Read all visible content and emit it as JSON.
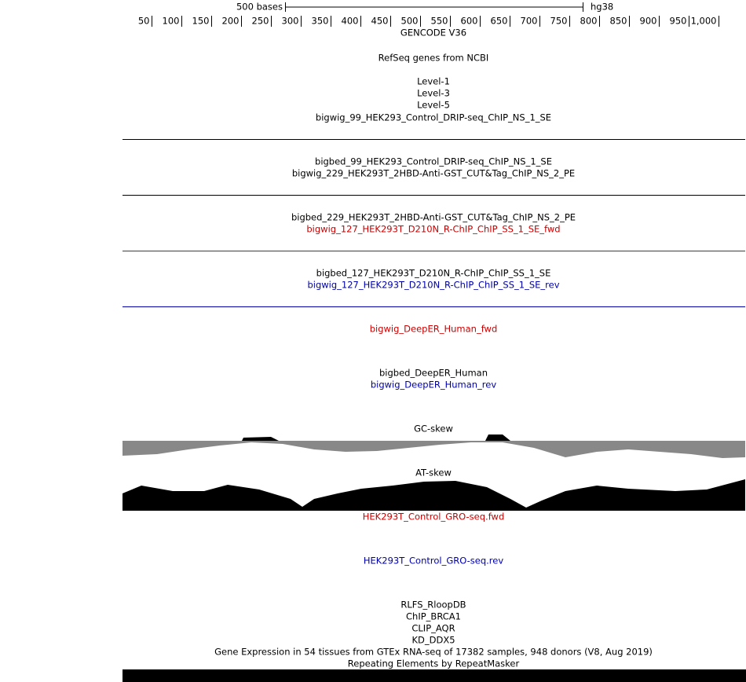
{
  "ruler": {
    "scale_label": "500 bases",
    "assembly": "hg38",
    "ticks": [
      50,
      100,
      150,
      200,
      250,
      300,
      350,
      400,
      450,
      500,
      550,
      600,
      650,
      700,
      750,
      800,
      850,
      900,
      950,
      {
        "value": 1000,
        "label": "1,000"
      }
    ]
  },
  "tracks": [
    {
      "label": "GENCODE V36",
      "color": "#000000"
    },
    {
      "label": "RefSeq genes from NCBI",
      "color": "#000000"
    },
    {
      "label": "Level-1",
      "color": "#000000"
    },
    {
      "label": "Level-3",
      "color": "#000000"
    },
    {
      "label": "Level-5",
      "color": "#000000"
    },
    {
      "label": "bigwig_99_HEK293_Control_DRIP-seq_ChIP_NS_1_SE",
      "color": "#000000"
    },
    {
      "label": "bigbed_99_HEK293_Control_DRIP-seq_ChIP_NS_1_SE",
      "color": "#000000"
    },
    {
      "label": "bigwig_229_HEK293T_2HBD-Anti-GST_CUT&Tag_ChIP_NS_2_PE",
      "color": "#000000"
    },
    {
      "label": "bigbed_229_HEK293T_2HBD-Anti-GST_CUT&Tag_ChIP_NS_2_PE",
      "color": "#000000"
    },
    {
      "label": "bigwig_127_HEK293T_D210N_R-ChIP_ChIP_SS_1_SE_fwd",
      "color": "#cc0000"
    },
    {
      "label": "bigbed_127_HEK293T_D210N_R-ChIP_ChIP_SS_1_SE",
      "color": "#000000"
    },
    {
      "label": "bigwig_127_HEK293T_D210N_R-ChIP_ChIP_SS_1_SE_rev",
      "color": "#0000aa"
    },
    {
      "label": "bigwig_DeepER_Human_fwd",
      "color": "#cc0000"
    },
    {
      "label": "bigbed_DeepER_Human",
      "color": "#000000"
    },
    {
      "label": "bigwig_DeepER_Human_rev",
      "color": "#0000aa"
    },
    {
      "label": "GC-skew",
      "color": "#000000"
    },
    {
      "label": "AT-skew",
      "color": "#000000"
    },
    {
      "label": "HEK293T_Control_GRO-seq.fwd",
      "color": "#cc0000"
    },
    {
      "label": "HEK293T_Control_GRO-seq.rev",
      "color": "#0000aa"
    },
    {
      "label": "RLFS_RloopDB",
      "color": "#000000"
    },
    {
      "label": "ChIP_BRCA1",
      "color": "#000000"
    },
    {
      "label": "CLIP_AQR",
      "color": "#000000"
    },
    {
      "label": "KD_DDX5",
      "color": "#000000"
    },
    {
      "label": "Gene Expression in 54 tissues from GTEx RNA-seq of 17382 samples, 948 donors (V8, Aug 2019)",
      "color": "#000000"
    },
    {
      "label": "Repeating Elements by RepeatMasker",
      "color": "#000000"
    }
  ]
}
